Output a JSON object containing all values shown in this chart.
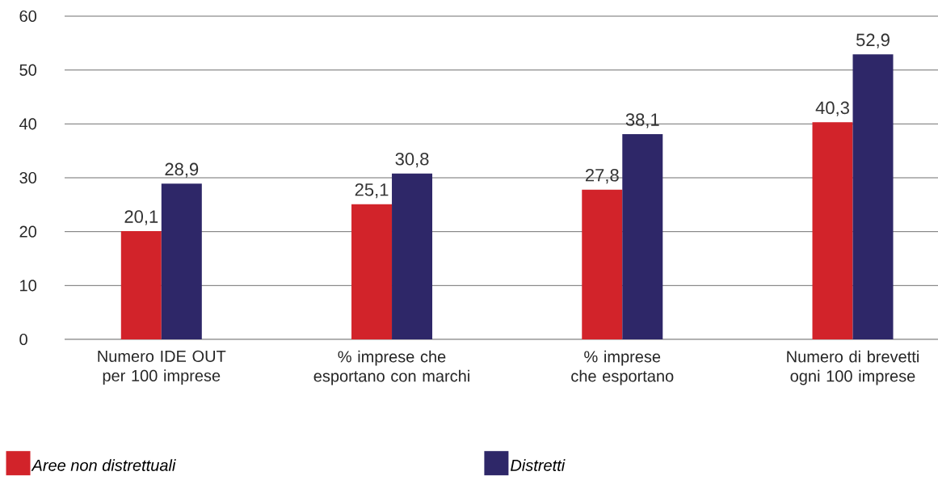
{
  "chart_data": {
    "type": "bar",
    "categories": [
      "Numero IDE OUT per 100 imprese",
      "% imprese che esportano con marchi",
      "% imprese che esportano",
      "Numero di brevetti ogni 100 imprese"
    ],
    "series": [
      {
        "name": "Aree non distrettuali",
        "color": "#d2232a",
        "values": [
          20.1,
          25.1,
          27.8,
          40.3
        ],
        "value_labels": [
          "20,1",
          "25,1",
          "27,8",
          "40,3"
        ]
      },
      {
        "name": "Distretti",
        "color": "#2e2768",
        "values": [
          28.9,
          30.8,
          38.1,
          52.9
        ],
        "value_labels": [
          "28,9",
          "30,8",
          "38,1",
          "52,9"
        ]
      }
    ],
    "ylim": [
      0,
      60
    ],
    "yticks": [
      0,
      10,
      20,
      30,
      40,
      50,
      60
    ],
    "grid": "y",
    "legend": "bottom"
  }
}
